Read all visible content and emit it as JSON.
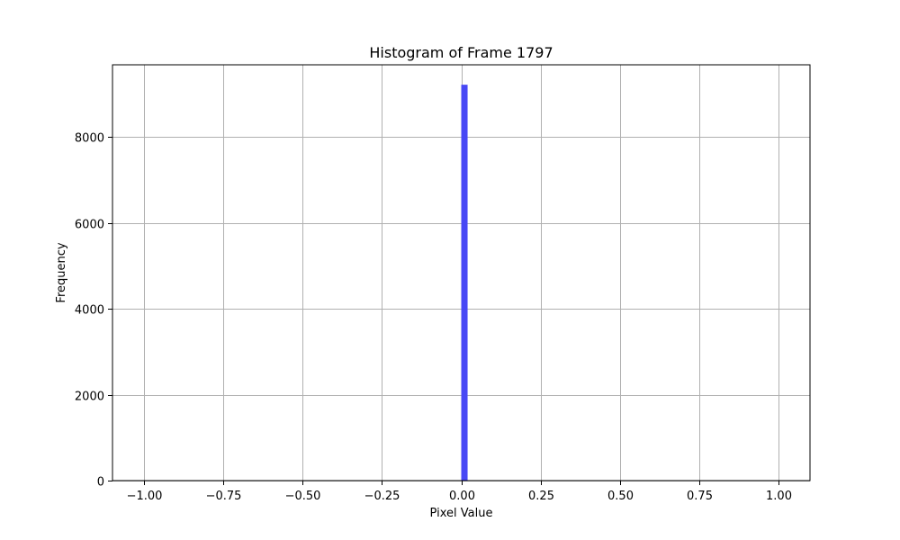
{
  "chart_data": {
    "type": "bar",
    "title": "Histogram of Frame 1797",
    "xlabel": "Pixel Value",
    "ylabel": "Frequency",
    "xlim": [
      -1.1,
      1.1
    ],
    "ylim": [
      0,
      9680
    ],
    "xticks": [
      -1.0,
      -0.75,
      -0.5,
      -0.25,
      0.0,
      0.25,
      0.5,
      0.75,
      1.0
    ],
    "xtick_labels": [
      "−1.00",
      "−0.75",
      "−0.50",
      "−0.25",
      "0.00",
      "0.25",
      "0.50",
      "0.75",
      "1.00"
    ],
    "yticks": [
      0,
      2000,
      4000,
      6000,
      8000
    ],
    "ytick_labels": [
      "0",
      "2000",
      "4000",
      "6000",
      "8000"
    ],
    "grid": true,
    "bar_color": "#4848f5",
    "bins": [
      {
        "x0": 0.0,
        "x1": 0.02,
        "count": 9216
      }
    ]
  }
}
